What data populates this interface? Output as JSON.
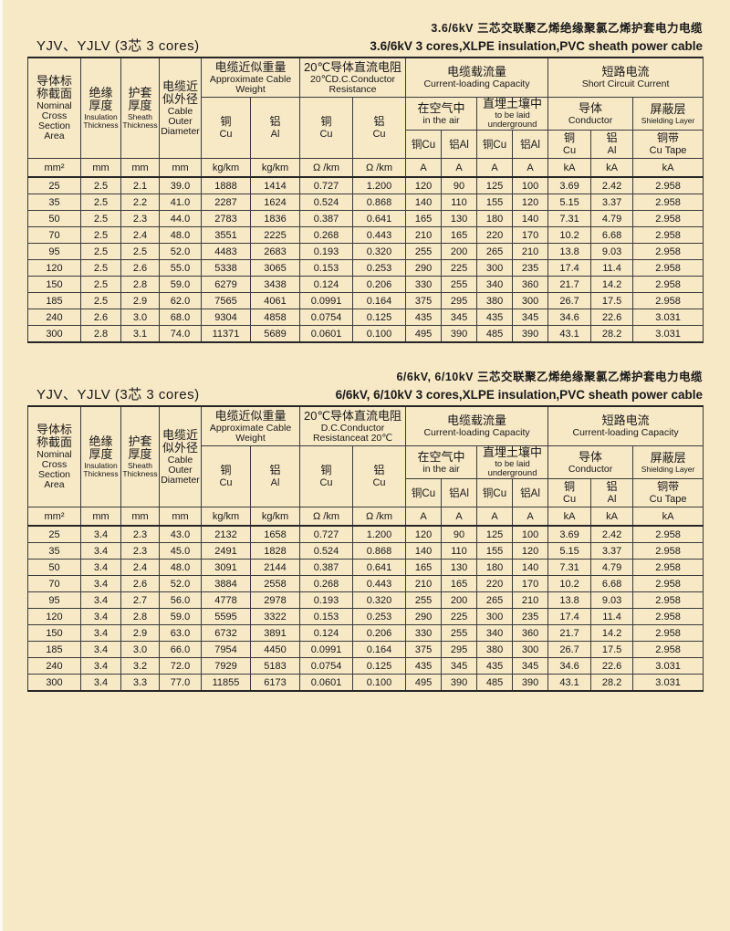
{
  "page": {
    "background": "#f7e8c6",
    "line_color": "#3a3a3a"
  },
  "tables": [
    {
      "title_cn": "3.6/6kV 三芯交联聚乙烯绝缘聚氯乙烯护套电力电缆",
      "title_en": "3.6/6kV 3 cores,XLPE insulation,PVC sheath power cable",
      "model_label": "YJV、YJLV (3芯  3 cores)",
      "header": {
        "section": {
          "cn": "导体标称截面",
          "en": "Nominal Cross Section Area"
        },
        "insulation": {
          "cn": "绝缘厚度",
          "en": "Insulation Thickness"
        },
        "sheath": {
          "cn": "护套厚度",
          "en": "Sheath Thickness"
        },
        "diameter": {
          "cn": "电缆近似外径",
          "en": "Cable Outer Diameter"
        },
        "weight": {
          "cn": "电缆近似重量",
          "en": "Approximate Cable Weight",
          "cu_cn": "铜",
          "cu_en": "Cu",
          "al_cn": "铝",
          "al_en": "Al"
        },
        "resistance": {
          "cn": "20℃导体直流电阻",
          "en": "20℃D.C.Conductor Resistance",
          "cu_cn": "铜",
          "cu_en": "Cu",
          "al_cn": "铝",
          "al_en": "Cu"
        },
        "capacity": {
          "cn": "电缆载流量",
          "en": "Current-loading Capacity",
          "air_cn": "在空气中",
          "air_en": "in the air",
          "under_cn": "直埋土壤中",
          "under_en": "to be laid underground",
          "m1": "铜Cu",
          "m2": "铝Al",
          "m3": "铜Cu",
          "m4": "铝Al"
        },
        "short": {
          "cn": "短路电流",
          "en": "Short  Circuit Current",
          "cond_cn": "导体",
          "cond_en": "Conductor",
          "shield_cn": "屏蔽层",
          "shield_en": "Shielding Layer",
          "cu_cn": "铜",
          "cu_en": "Cu",
          "al_cn": "铝",
          "al_en": "Al",
          "tape_cn": "铜带",
          "tape_en": "Cu Tape"
        },
        "units": [
          "mm²",
          "mm",
          "mm",
          "mm",
          "kg/km",
          "kg/km",
          "Ω /km",
          "Ω /km",
          "A",
          "A",
          "A",
          "A",
          "kA",
          "kA",
          "kA"
        ]
      },
      "rows": [
        [
          "25",
          "2.5",
          "2.1",
          "39.0",
          "1888",
          "1414",
          "0.727",
          "1.200",
          "120",
          "90",
          "125",
          "100",
          "3.69",
          "2.42",
          "2.958"
        ],
        [
          "35",
          "2.5",
          "2.2",
          "41.0",
          "2287",
          "1624",
          "0.524",
          "0.868",
          "140",
          "110",
          "155",
          "120",
          "5.15",
          "3.37",
          "2.958"
        ],
        [
          "50",
          "2.5",
          "2.3",
          "44.0",
          "2783",
          "1836",
          "0.387",
          "0.641",
          "165",
          "130",
          "180",
          "140",
          "7.31",
          "4.79",
          "2.958"
        ],
        [
          "70",
          "2.5",
          "2.4",
          "48.0",
          "3551",
          "2225",
          "0.268",
          "0.443",
          "210",
          "165",
          "220",
          "170",
          "10.2",
          "6.68",
          "2.958"
        ],
        [
          "95",
          "2.5",
          "2.5",
          "52.0",
          "4483",
          "2683",
          "0.193",
          "0.320",
          "255",
          "200",
          "265",
          "210",
          "13.8",
          "9.03",
          "2.958"
        ],
        [
          "120",
          "2.5",
          "2.6",
          "55.0",
          "5338",
          "3065",
          "0.153",
          "0.253",
          "290",
          "225",
          "300",
          "235",
          "17.4",
          "11.4",
          "2.958"
        ],
        [
          "150",
          "2.5",
          "2.8",
          "59.0",
          "6279",
          "3438",
          "0.124",
          "0.206",
          "330",
          "255",
          "340",
          "360",
          "21.7",
          "14.2",
          "2.958"
        ],
        [
          "185",
          "2.5",
          "2.9",
          "62.0",
          "7565",
          "4061",
          "0.0991",
          "0.164",
          "375",
          "295",
          "380",
          "300",
          "26.7",
          "17.5",
          "2.958"
        ],
        [
          "240",
          "2.6",
          "3.0",
          "68.0",
          "9304",
          "4858",
          "0.0754",
          "0.125",
          "435",
          "345",
          "435",
          "345",
          "34.6",
          "22.6",
          "3.031"
        ],
        [
          "300",
          "2.8",
          "3.1",
          "74.0",
          "11371",
          "5689",
          "0.0601",
          "0.100",
          "495",
          "390",
          "485",
          "390",
          "43.1",
          "28.2",
          "3.031"
        ]
      ]
    },
    {
      "title_cn": "6/6kV, 6/10kV 三芯交联聚乙烯绝缘聚氯乙烯护套电力电缆",
      "title_en": "6/6kV, 6/10kV 3 cores,XLPE insulation,PVC sheath power cable",
      "model_label": "YJV、YJLV (3芯  3 cores)",
      "header": {
        "section": {
          "cn": "导体标称截面",
          "en": "Nominal Cross Section Area"
        },
        "insulation": {
          "cn": "绝缘厚度",
          "en": "Insulation Thickness"
        },
        "sheath": {
          "cn": "护套厚度",
          "en": "Sheath Thickness"
        },
        "diameter": {
          "cn": "电缆近似外径",
          "en": "Cable Outer Diameter"
        },
        "weight": {
          "cn": "电缆近似重量",
          "en": "Approximate Cable Weight",
          "cu_cn": "铜",
          "cu_en": "Cu",
          "al_cn": "铝",
          "al_en": "Al"
        },
        "resistance": {
          "cn": "20℃导体直流电阻",
          "en": "D.C.Conductor Resistanceat 20℃",
          "cu_cn": "铜",
          "cu_en": "Cu",
          "al_cn": "铝",
          "al_en": "Cu"
        },
        "capacity": {
          "cn": "电缆载流量",
          "en": "Current-loading Capacity",
          "air_cn": "在空气中",
          "air_en": "in the air",
          "under_cn": "直埋土壤中",
          "under_en": "to be laid underground",
          "m1": "铜Cu",
          "m2": "铝Al",
          "m3": "铜Cu",
          "m4": "铝Al"
        },
        "short": {
          "cn": "短路电流",
          "en": "Current-loading Capacity",
          "cond_cn": "导体",
          "cond_en": "Conductor",
          "shield_cn": "屏蔽层",
          "shield_en": "Shielding Layer",
          "cu_cn": "铜",
          "cu_en": "Cu",
          "al_cn": "铝",
          "al_en": "Al",
          "tape_cn": "铜带",
          "tape_en": "Cu Tape"
        },
        "units": [
          "mm²",
          "mm",
          "mm",
          "mm",
          "kg/km",
          "kg/km",
          "Ω /km",
          "Ω /km",
          "A",
          "A",
          "A",
          "A",
          "kA",
          "kA",
          "kA"
        ]
      },
      "rows": [
        [
          "25",
          "3.4",
          "2.3",
          "43.0",
          "2132",
          "1658",
          "0.727",
          "1.200",
          "120",
          "90",
          "125",
          "100",
          "3.69",
          "2.42",
          "2.958"
        ],
        [
          "35",
          "3.4",
          "2.3",
          "45.0",
          "2491",
          "1828",
          "0.524",
          "0.868",
          "140",
          "110",
          "155",
          "120",
          "5.15",
          "3.37",
          "2.958"
        ],
        [
          "50",
          "3.4",
          "2.4",
          "48.0",
          "3091",
          "2144",
          "0.387",
          "0.641",
          "165",
          "130",
          "180",
          "140",
          "7.31",
          "4.79",
          "2.958"
        ],
        [
          "70",
          "3.4",
          "2.6",
          "52.0",
          "3884",
          "2558",
          "0.268",
          "0.443",
          "210",
          "165",
          "220",
          "170",
          "10.2",
          "6.68",
          "2.958"
        ],
        [
          "95",
          "3.4",
          "2.7",
          "56.0",
          "4778",
          "2978",
          "0.193",
          "0.320",
          "255",
          "200",
          "265",
          "210",
          "13.8",
          "9.03",
          "2.958"
        ],
        [
          "120",
          "3.4",
          "2.8",
          "59.0",
          "5595",
          "3322",
          "0.153",
          "0.253",
          "290",
          "225",
          "300",
          "235",
          "17.4",
          "11.4",
          "2.958"
        ],
        [
          "150",
          "3.4",
          "2.9",
          "63.0",
          "6732",
          "3891",
          "0.124",
          "0.206",
          "330",
          "255",
          "340",
          "360",
          "21.7",
          "14.2",
          "2.958"
        ],
        [
          "185",
          "3.4",
          "3.0",
          "66.0",
          "7954",
          "4450",
          "0.0991",
          "0.164",
          "375",
          "295",
          "380",
          "300",
          "26.7",
          "17.5",
          "2.958"
        ],
        [
          "240",
          "3.4",
          "3.2",
          "72.0",
          "7929",
          "5183",
          "0.0754",
          "0.125",
          "435",
          "345",
          "435",
          "345",
          "34.6",
          "22.6",
          "3.031"
        ],
        [
          "300",
          "3.4",
          "3.3",
          "77.0",
          "11855",
          "6173",
          "0.0601",
          "0.100",
          "495",
          "390",
          "485",
          "390",
          "43.1",
          "28.2",
          "3.031"
        ]
      ]
    }
  ]
}
